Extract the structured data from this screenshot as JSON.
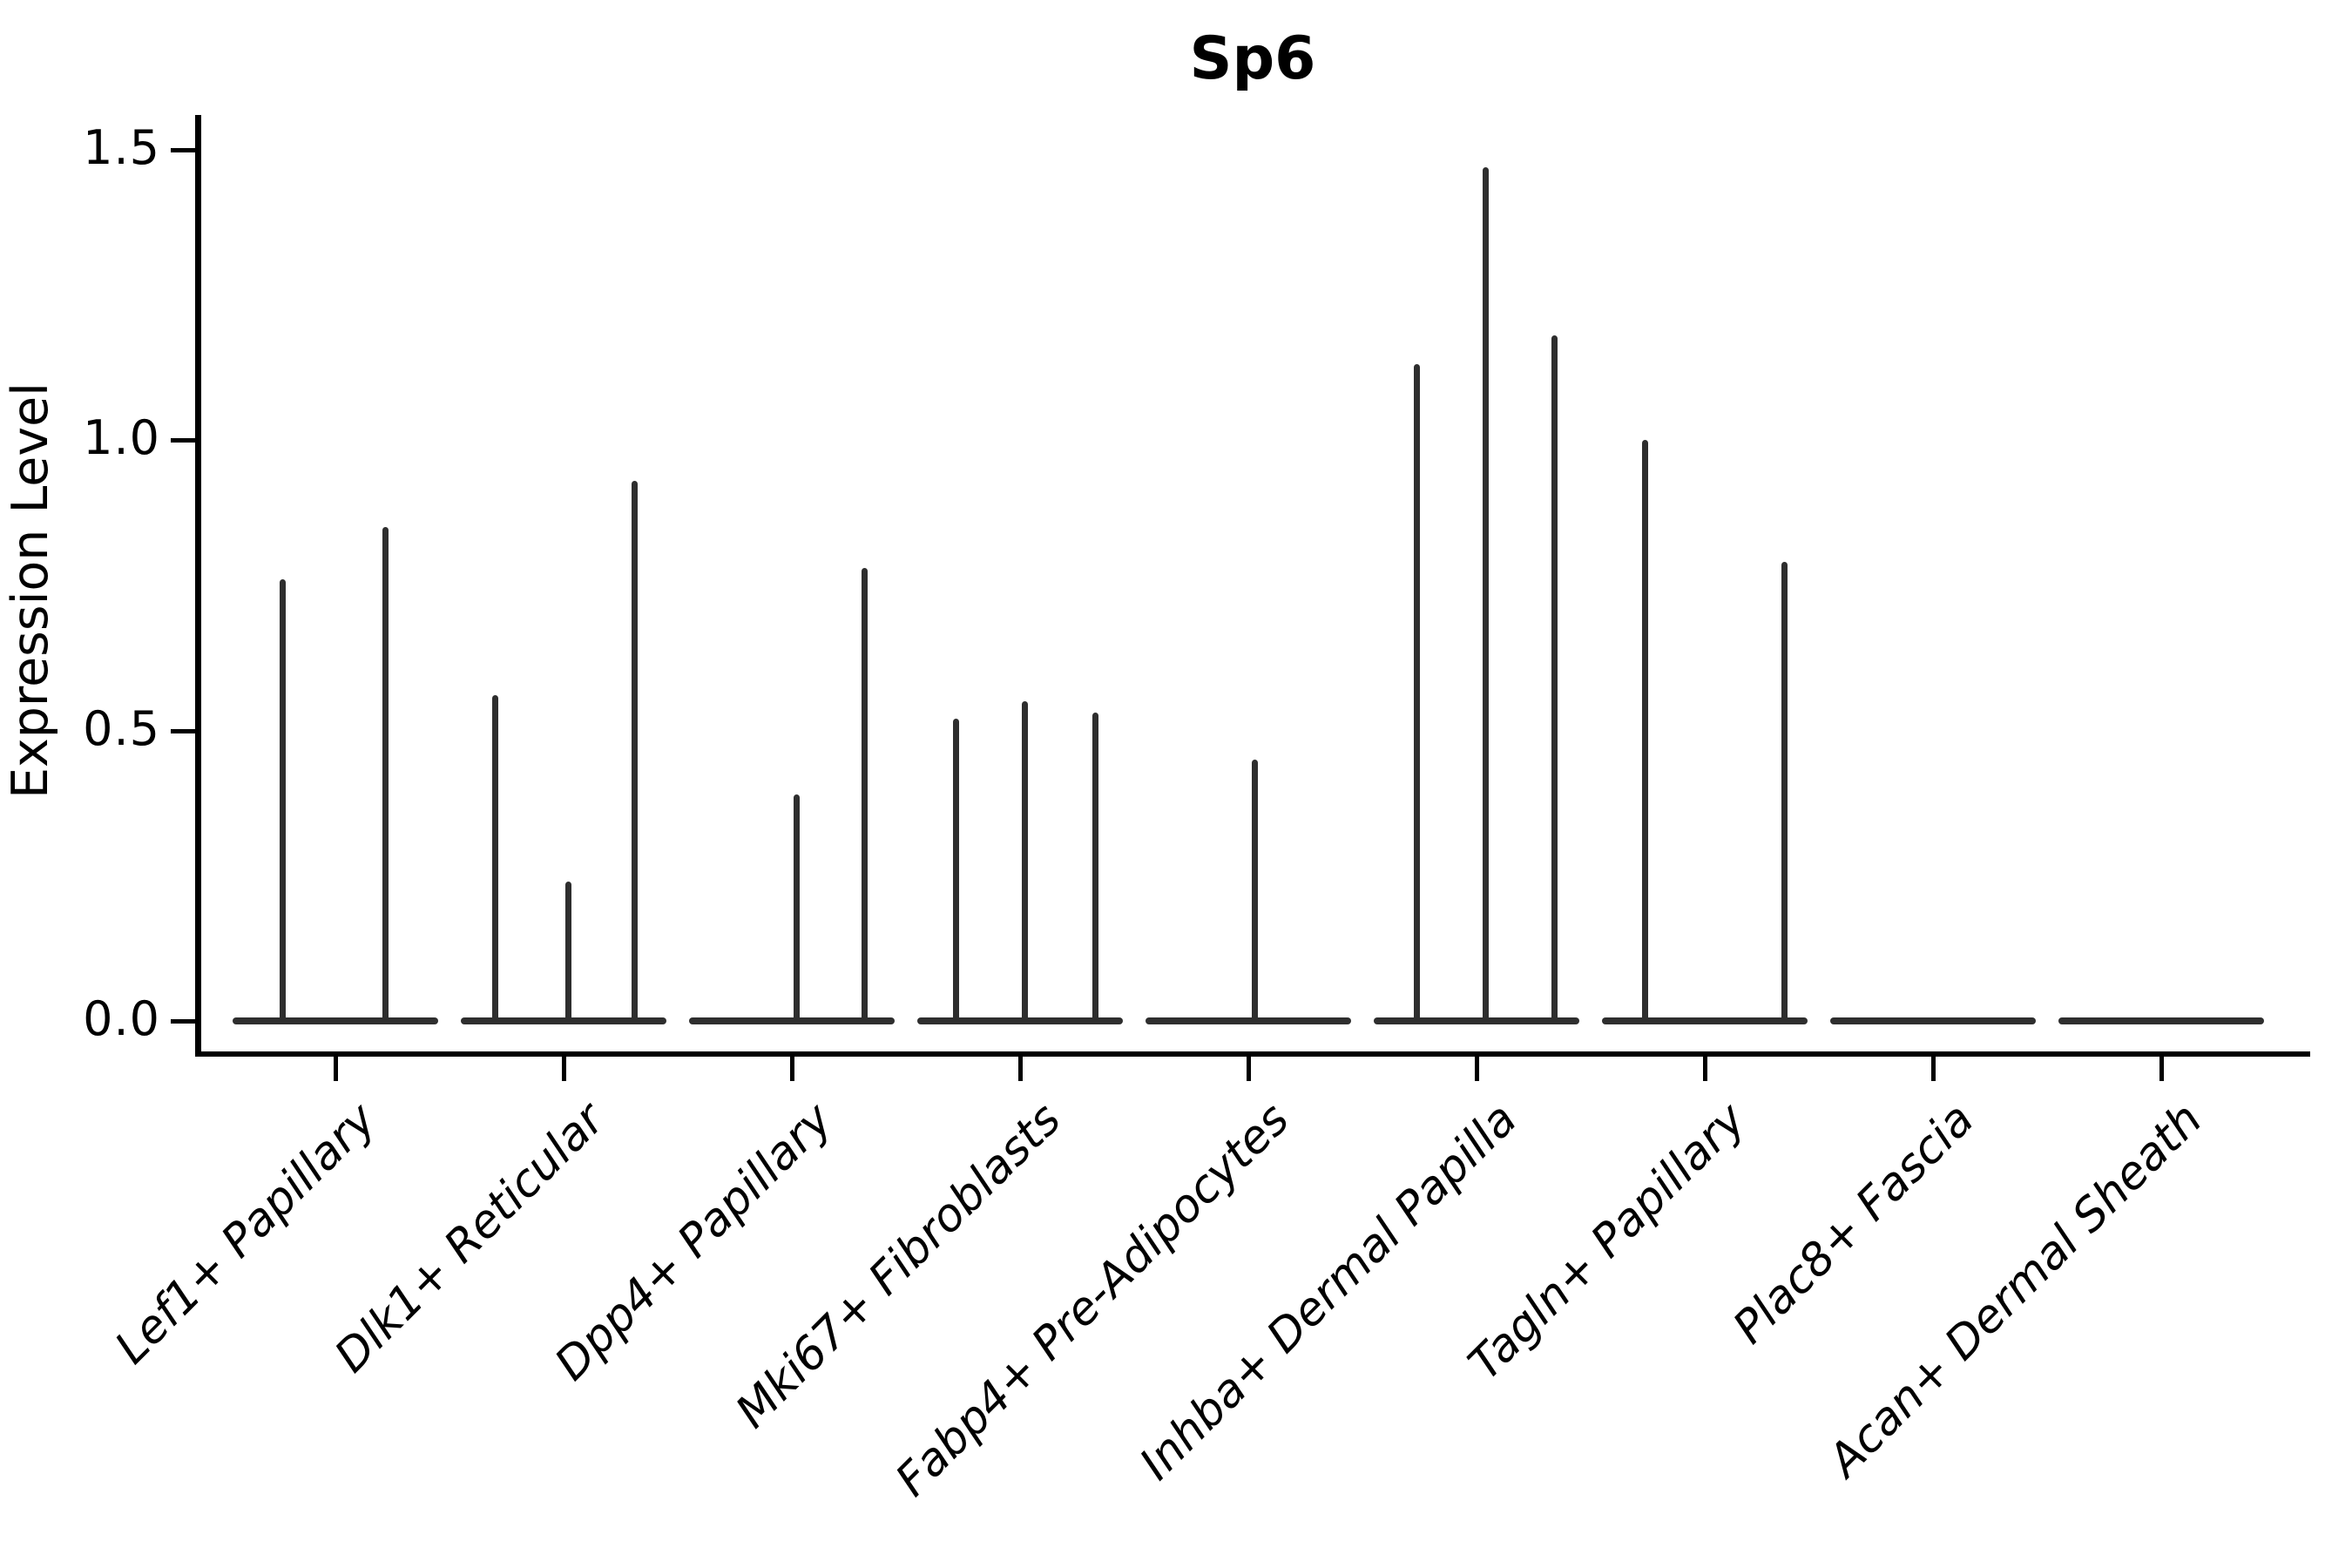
{
  "title": "Sp6",
  "y_axis": {
    "label": "Expression Level",
    "tick_labels": [
      "0.0",
      "0.5",
      "1.0",
      "1.5"
    ],
    "tick_values": [
      0.0,
      0.5,
      1.0,
      1.5
    ]
  },
  "chart_data": {
    "type": "violin",
    "title": "Sp6",
    "xlabel": "",
    "ylabel": "Expression Level",
    "ylim": [
      0,
      1.5
    ],
    "yticks": [
      0.0,
      0.5,
      1.0,
      1.5
    ],
    "grid": false,
    "legend": "none",
    "x_tick_style": "italic, rotated 45deg, right-anchored",
    "categories": [
      "Lef1+ Papillary",
      "Dlk1+ Reticular",
      "Dpp4+ Papillary",
      "Mki67+ Fibroblasts",
      "Fabp4+ Pre-Adipocytes",
      "Inhba+ Dermal Papilla",
      "Tagln+ Papillary",
      "Plac8+ Fascia",
      "Acan+ Dermal Sheath"
    ],
    "series": [
      {
        "category": "Lef1+ Papillary",
        "max_expression": 0.85,
        "spikes": [
          {
            "offset": -0.23,
            "value": 0.76
          },
          {
            "offset": 0.22,
            "value": 0.85
          }
        ]
      },
      {
        "category": "Dlk1+ Reticular",
        "max_expression": 0.93,
        "spikes": [
          {
            "offset": -0.3,
            "value": 0.56
          },
          {
            "offset": 0.02,
            "value": 0.24
          },
          {
            "offset": 0.31,
            "value": 0.93
          }
        ]
      },
      {
        "category": "Dpp4+ Papillary",
        "max_expression": 0.78,
        "spikes": [
          {
            "offset": 0.02,
            "value": 0.39
          },
          {
            "offset": 0.32,
            "value": 0.78
          }
        ]
      },
      {
        "category": "Mki67+ Fibroblasts",
        "max_expression": 0.55,
        "spikes": [
          {
            "offset": -0.28,
            "value": 0.52
          },
          {
            "offset": 0.02,
            "value": 0.55
          },
          {
            "offset": 0.33,
            "value": 0.53
          }
        ]
      },
      {
        "category": "Fabp4+ Pre-Adipocytes",
        "max_expression": 0.45,
        "spikes": [
          {
            "offset": 0.03,
            "value": 0.45
          }
        ]
      },
      {
        "category": "Inhba+ Dermal Papilla",
        "max_expression": 1.47,
        "spikes": [
          {
            "offset": -0.26,
            "value": 1.13
          },
          {
            "offset": 0.04,
            "value": 1.47
          },
          {
            "offset": 0.34,
            "value": 1.18
          }
        ]
      },
      {
        "category": "Tagln+ Papillary",
        "max_expression": 1.0,
        "spikes": [
          {
            "offset": -0.26,
            "value": 1.0
          },
          {
            "offset": 0.35,
            "value": 0.79
          }
        ]
      },
      {
        "category": "Plac8+ Fascia",
        "max_expression": 0.0,
        "spikes": []
      },
      {
        "category": "Acan+ Dermal Sheath",
        "max_expression": 0.0,
        "spikes": []
      }
    ],
    "colors": {
      "violin": "#2e2e2e",
      "axis": "#000000",
      "background": "#ffffff"
    }
  }
}
